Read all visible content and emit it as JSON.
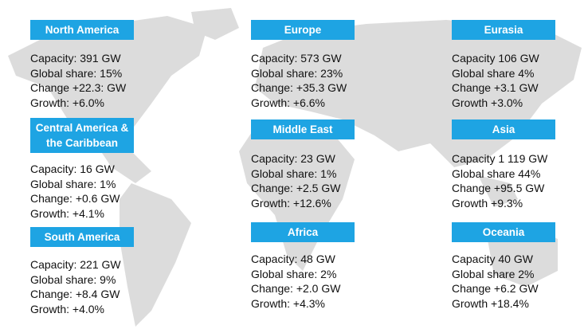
{
  "regions": [
    {
      "name": "North America",
      "lines": [
        "Capacity: 391 GW",
        "Global share: 15%",
        "Change +22.3: GW",
        "Growth: +6.0%"
      ]
    },
    {
      "name": "Central America & the Caribbean",
      "lines": [
        "Capacity: 16 GW",
        "Global share: 1%",
        "Change: +0.6 GW",
        "Growth: +4.1%"
      ]
    },
    {
      "name": "South America",
      "lines": [
        "Capacity: 221 GW",
        "Global share: 9%",
        "Change: +8.4 GW",
        "Growth: +4.0%"
      ]
    },
    {
      "name": "Europe",
      "lines": [
        "Capacity: 573 GW",
        "Global share: 23%",
        "Change: +35.3 GW",
        "Growth: +6.6%"
      ]
    },
    {
      "name": "Middle East",
      "lines": [
        "Capacity: 23 GW",
        "Global share: 1%",
        "Change: +2.5 GW",
        "Growth: +12.6%"
      ]
    },
    {
      "name": "Africa",
      "lines": [
        "Capacity: 48 GW",
        "Global share: 2%",
        "Change: +2.0 GW",
        "Growth: +4.3%"
      ]
    },
    {
      "name": "Eurasia",
      "lines": [
        "Capacity 106 GW",
        "Global share 4%",
        "Change +3.1 GW",
        "Growth +3.0%"
      ]
    },
    {
      "name": "Asia",
      "lines": [
        "Capacity 1 119 GW",
        "Global share 44%",
        "Change +95.5 GW",
        "Growth +9.3%"
      ]
    },
    {
      "name": "Oceania",
      "lines": [
        "Capacity 40 GW",
        "Global share 2%",
        "Change +6.2 GW",
        "Growth +18.4%"
      ]
    }
  ]
}
